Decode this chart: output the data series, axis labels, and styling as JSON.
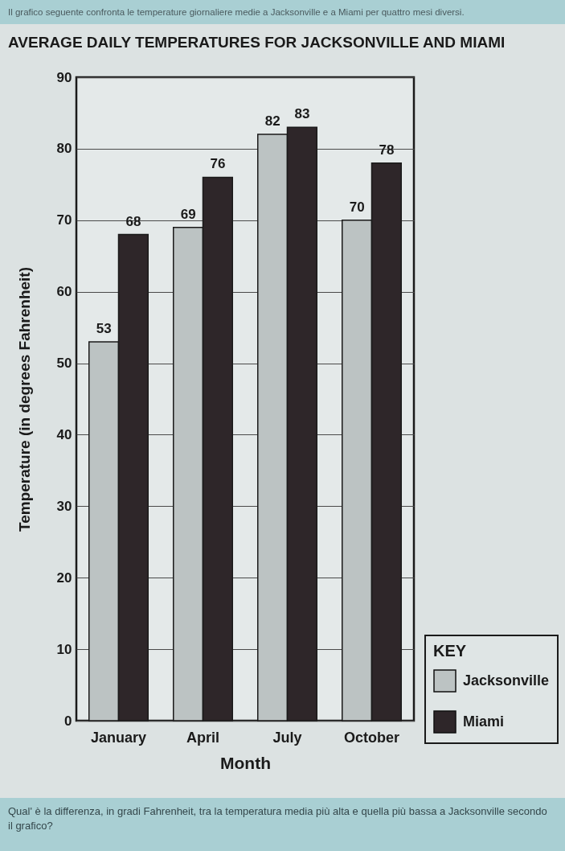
{
  "chart_data": {
    "type": "bar",
    "title": "AVERAGE DAILY TEMPERATURES FOR JACKSONVILLE AND MIAMI",
    "xlabel": "Month",
    "ylabel": "Temperature (in degrees Fahrenheit)",
    "legend_title": "KEY",
    "categories": [
      "January",
      "April",
      "July",
      "October"
    ],
    "series": [
      {
        "name": "Jacksonville",
        "color": "#bcc3c3",
        "values": [
          53,
          69,
          82,
          70
        ]
      },
      {
        "name": "Miami",
        "color": "#2e2629",
        "values": [
          68,
          76,
          83,
          78
        ]
      }
    ],
    "ylim": [
      0,
      90
    ],
    "yticks": [
      0,
      10,
      20,
      30,
      40,
      50,
      60,
      70,
      80,
      90
    ],
    "grid": "y",
    "legend": "right",
    "data_labels": true,
    "annotations": [
      "Il grafico seguente confronta le temperature giornaliere medie a Jacksonville e a Miami per quattro mesi diversi.",
      "Qual' è la differenza, in gradi Fahrenheit, tra la temperatura media più alta e quella più bassa a Jacksonville secondo il grafico?"
    ]
  }
}
